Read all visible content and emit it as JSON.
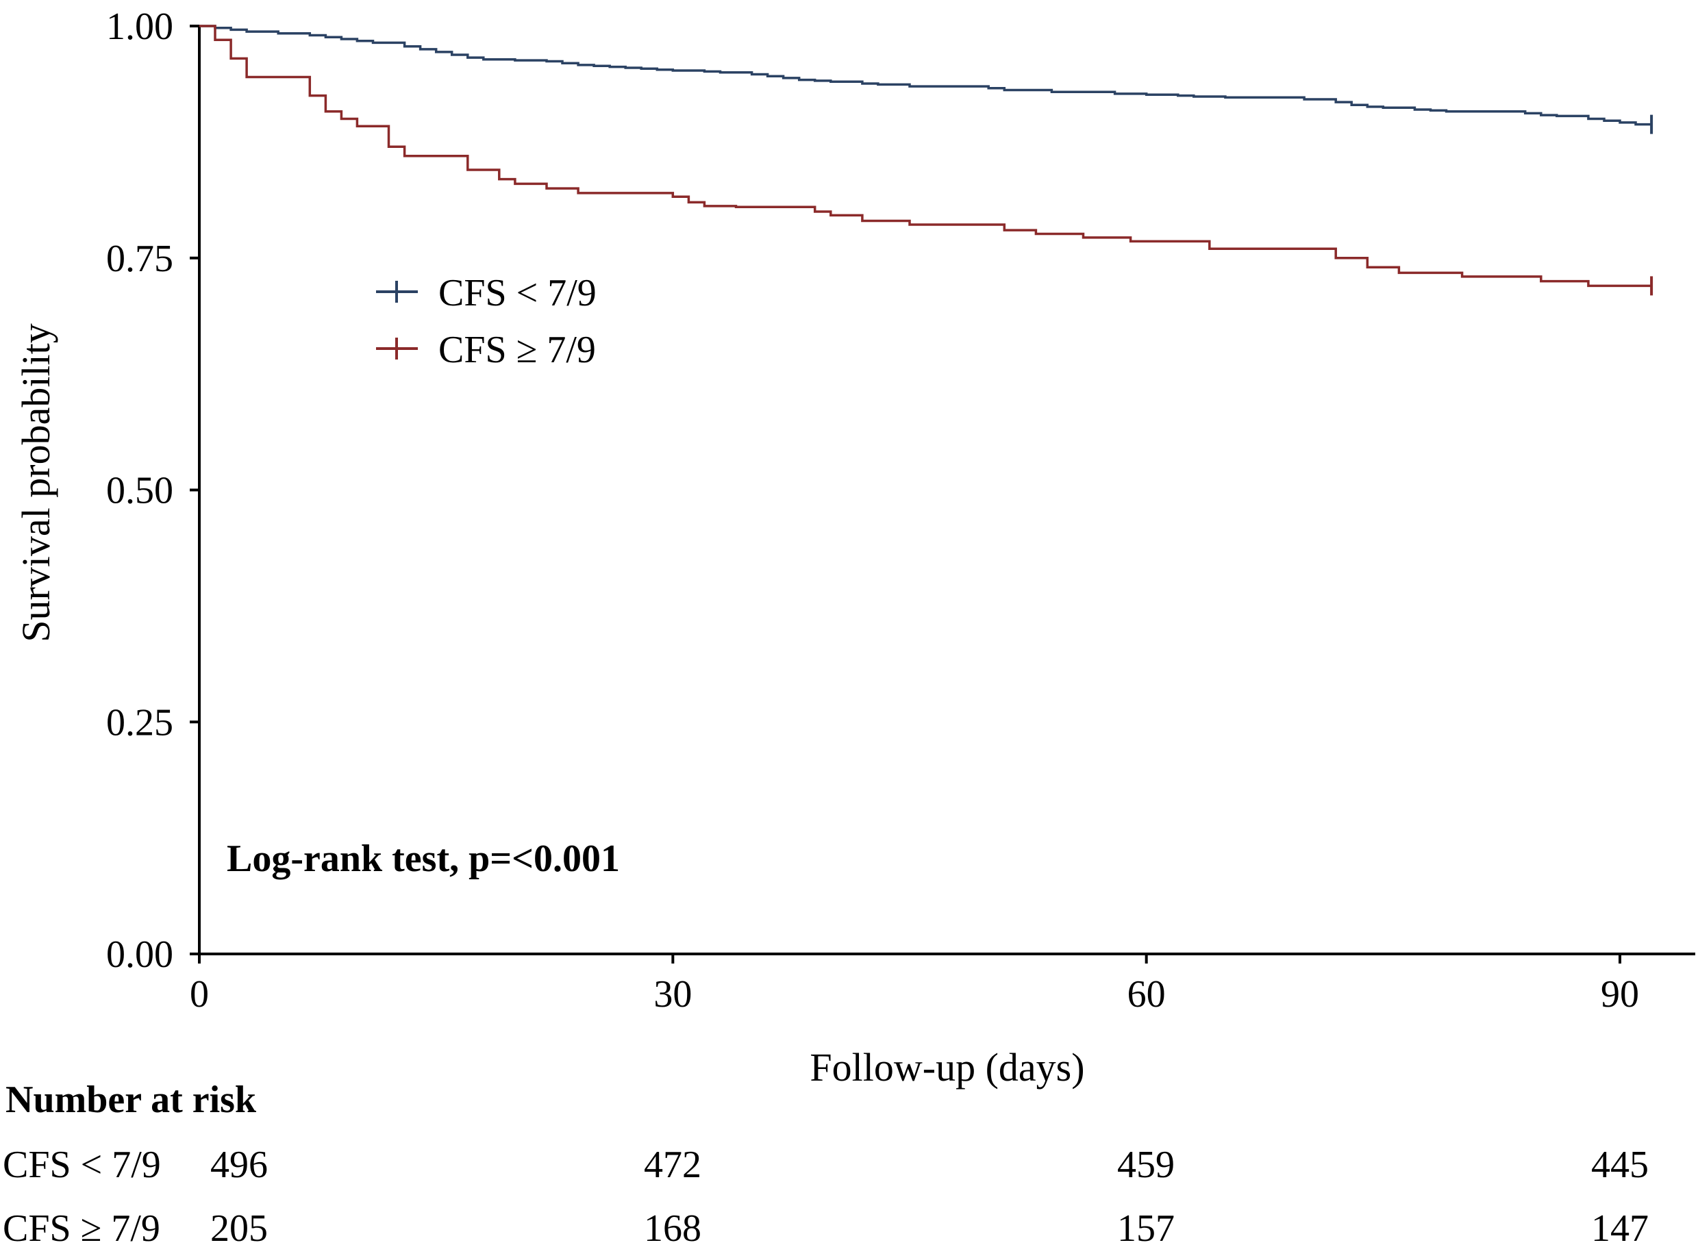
{
  "chart_data": {
    "type": "line",
    "subtype": "kaplan-meier step",
    "xlabel": "Follow-up (days)",
    "ylabel": "Survival probability",
    "xlim": [
      0,
      92
    ],
    "ylim": [
      0,
      1
    ],
    "x_ticks": [
      0,
      30,
      60,
      90
    ],
    "x_tick_labels": [
      "0",
      "30",
      "60",
      "90"
    ],
    "y_ticks": [
      0,
      0.25,
      0.5,
      0.75,
      1.0
    ],
    "y_tick_labels": [
      "0.00",
      "0.25",
      "0.50",
      "0.75",
      "1.00"
    ],
    "grid": false,
    "legend_position": "upper-left (inside plot)",
    "annotation": "Log-rank test, p=<0.001",
    "series": [
      {
        "name": "CFS < 7/9",
        "color": "#2b4263",
        "x": [
          0,
          1,
          2,
          3,
          5,
          7,
          8,
          9,
          10,
          11,
          13,
          14,
          15,
          16,
          17,
          18,
          20,
          22,
          23,
          24,
          25,
          26,
          27,
          28,
          29,
          30,
          32,
          33,
          35,
          36,
          37,
          38,
          39,
          40,
          42,
          43,
          45,
          50,
          51,
          54,
          58,
          60,
          62,
          63,
          65,
          70,
          72,
          73,
          74,
          75,
          77,
          78,
          79,
          84,
          85,
          86,
          88,
          89,
          90,
          91,
          92
        ],
        "y": [
          1.0,
          0.998,
          0.996,
          0.994,
          0.992,
          0.99,
          0.988,
          0.986,
          0.984,
          0.982,
          0.978,
          0.975,
          0.972,
          0.969,
          0.966,
          0.964,
          0.963,
          0.962,
          0.96,
          0.958,
          0.957,
          0.956,
          0.955,
          0.954,
          0.953,
          0.952,
          0.951,
          0.95,
          0.948,
          0.946,
          0.944,
          0.942,
          0.941,
          0.94,
          0.938,
          0.937,
          0.935,
          0.933,
          0.931,
          0.929,
          0.927,
          0.926,
          0.925,
          0.924,
          0.923,
          0.921,
          0.918,
          0.915,
          0.913,
          0.912,
          0.91,
          0.909,
          0.908,
          0.906,
          0.904,
          0.903,
          0.9,
          0.898,
          0.896,
          0.894,
          0.894
        ],
        "censor_x": [
          92
        ],
        "censor_y": [
          0.894
        ]
      },
      {
        "name": "CFS ≥ 7/9",
        "color": "#8b2a2a",
        "x": [
          0,
          1,
          2,
          3,
          7,
          8,
          9,
          10,
          12,
          13,
          17,
          19,
          20,
          22,
          24,
          30,
          31,
          32,
          34,
          39,
          40,
          42,
          45,
          51,
          53,
          56,
          59,
          64,
          72,
          74,
          76,
          80,
          85,
          88,
          92
        ],
        "y": [
          1.0,
          0.985,
          0.965,
          0.945,
          0.925,
          0.908,
          0.9,
          0.892,
          0.87,
          0.86,
          0.845,
          0.835,
          0.83,
          0.825,
          0.82,
          0.816,
          0.81,
          0.806,
          0.805,
          0.8,
          0.796,
          0.79,
          0.786,
          0.78,
          0.776,
          0.772,
          0.768,
          0.76,
          0.75,
          0.74,
          0.734,
          0.73,
          0.725,
          0.72,
          0.72
        ],
        "censor_x": [
          92
        ],
        "censor_y": [
          0.72
        ]
      }
    ],
    "risk_table": {
      "title": "Number at risk",
      "timepoints": [
        0,
        30,
        60,
        90
      ],
      "rows": [
        {
          "label": "CFS < 7/9",
          "values": [
            "496",
            "472",
            "459",
            "445"
          ]
        },
        {
          "label": "CFS ≥ 7/9",
          "values": [
            "205",
            "168",
            "157",
            "147"
          ]
        }
      ]
    }
  }
}
